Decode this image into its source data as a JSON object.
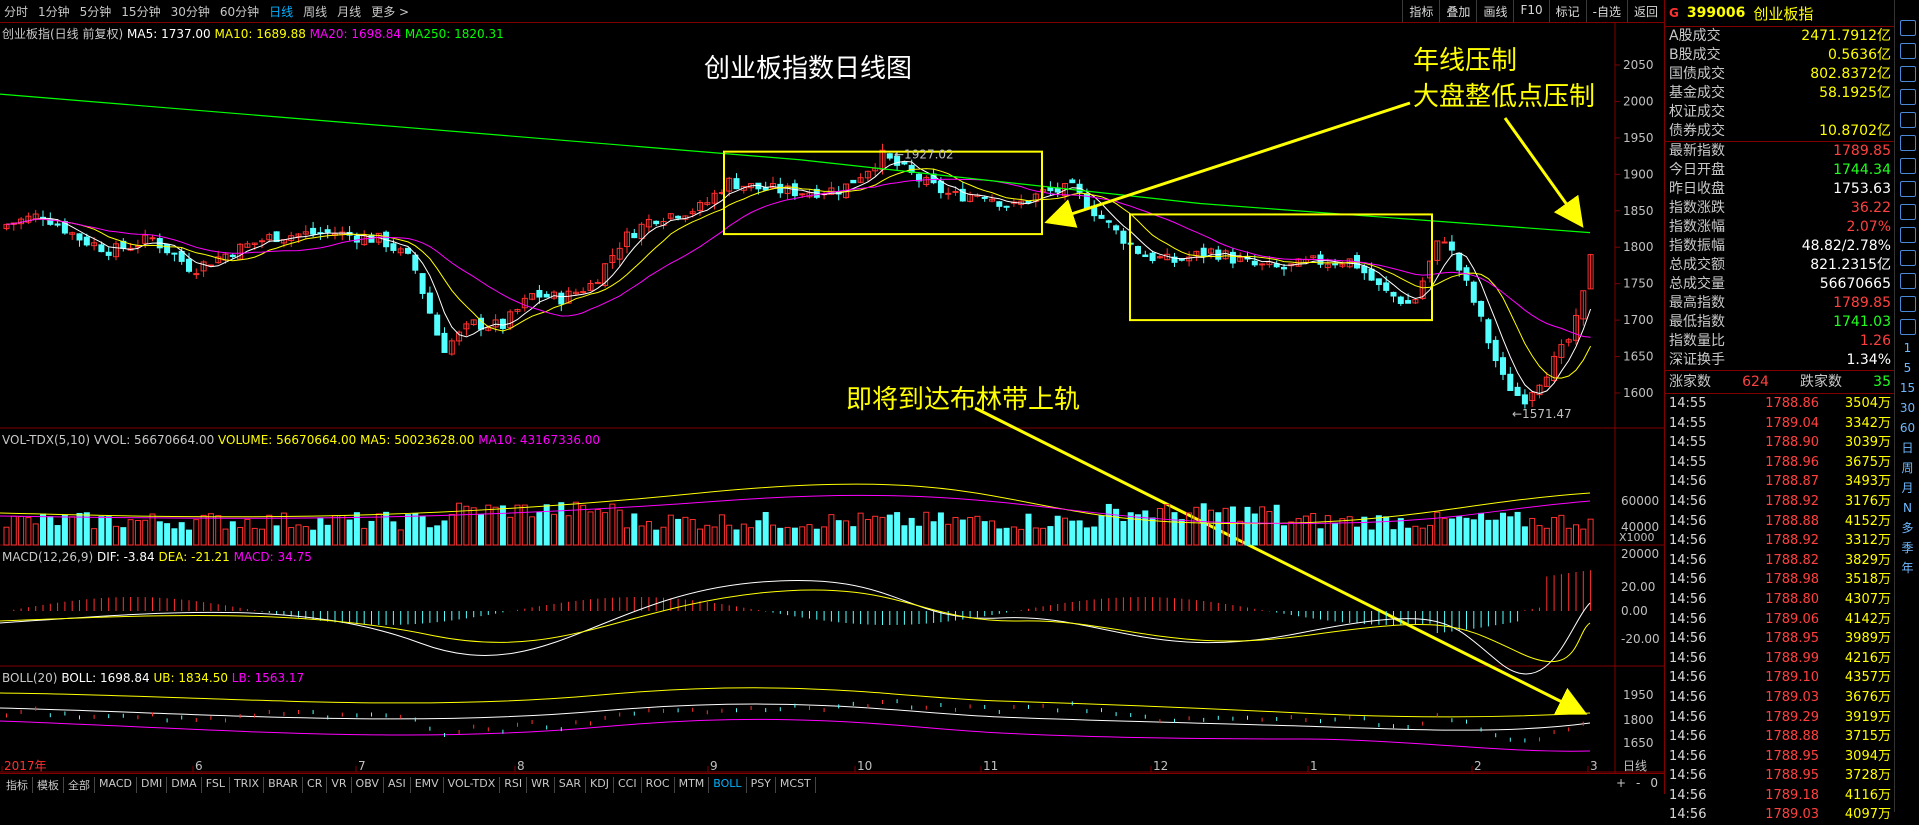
{
  "toolbar": {
    "periods": [
      "分时",
      "1分钟",
      "5分钟",
      "15分钟",
      "30分钟",
      "60分钟",
      "日线",
      "周线",
      "月线",
      "更多 >"
    ],
    "active_period": "日线",
    "buttons": [
      "指标",
      "叠加",
      "画线",
      "F10",
      "标记",
      "-自选",
      "返回"
    ]
  },
  "main_pane": {
    "header": {
      "name": "创业板指(日线 前复权)",
      "ma5": "MA5: 1737.00",
      "ma10": "MA10: 1689.88",
      "ma20": "MA20: 1698.84",
      "ma250": "MA250: 1820.31"
    },
    "title": "创业板指数日线图",
    "high_label": "1927.02",
    "low_label": "1571.47",
    "annotation_1_line1": "年线压制",
    "annotation_1_line2": "大盘整低点压制",
    "annotation_2": "即将到达布林带上轨",
    "y_ticks": [
      "2050",
      "2000",
      "1950",
      "1900",
      "1850",
      "1800",
      "1750",
      "1700",
      "1650",
      "1600"
    ]
  },
  "vol_pane": {
    "name": "VOL-TDX(5,10)",
    "vvol": "VVOL: 56670664.00",
    "volume": "VOLUME: 56670664.00",
    "ma5": "MA5: 50023628.00",
    "ma10": "MA10: 43167336.00",
    "y_ticks": [
      "60000",
      "40000",
      "20000"
    ],
    "unit": "X1000"
  },
  "macd_pane": {
    "name": "MACD(12,26,9)",
    "dif": "DIF: -3.84",
    "dea": "DEA: -21.21",
    "macd": "MACD: 34.75",
    "y_ticks": [
      "20.00",
      "0.00",
      "-20.00"
    ]
  },
  "boll_pane": {
    "name": "BOLL(20)",
    "boll": "BOLL: 1698.84",
    "ub": "UB: 1834.50",
    "lb": "LB: 1563.17",
    "y_ticks": [
      "1950",
      "1800",
      "1650"
    ]
  },
  "x_axis": {
    "labels": [
      "2017年",
      "6",
      "7",
      "8",
      "9",
      "10",
      "11",
      "12",
      "1",
      "2",
      "3"
    ],
    "period_label": "日线"
  },
  "bottom_tabs": [
    "指标",
    "模板",
    "全部",
    "MACD",
    "DMI",
    "DMA",
    "FSL",
    "TRIX",
    "BRAR",
    "CR",
    "VR",
    "OBV",
    "ASI",
    "EMV",
    "VOL-TDX",
    "RSI",
    "WR",
    "SAR",
    "KDJ",
    "CCI",
    "ROC",
    "MTM",
    "BOLL",
    "PSY",
    "MCST"
  ],
  "bottom_active": "BOLL",
  "bottom_right": [
    "+",
    "-",
    "0"
  ],
  "right_panel": {
    "flag": "G",
    "code": "399006",
    "name": "创业板指",
    "turnover": [
      {
        "k": "A股成交",
        "v": "2471.7912亿"
      },
      {
        "k": "B股成交",
        "v": "0.5636亿"
      },
      {
        "k": "国债成交",
        "v": "802.8372亿"
      },
      {
        "k": "基金成交",
        "v": "58.1925亿"
      },
      {
        "k": "权证成交",
        "v": ""
      },
      {
        "k": "债券成交",
        "v": "10.8702亿"
      }
    ],
    "quote": [
      {
        "k": "最新指数",
        "v": "1789.85",
        "c": "rise"
      },
      {
        "k": "今日开盘",
        "v": "1744.34",
        "c": "fall"
      },
      {
        "k": "昨日收盘",
        "v": "1753.63",
        "c": "white"
      },
      {
        "k": "指数涨跌",
        "v": "36.22",
        "c": "rise"
      },
      {
        "k": "指数涨幅",
        "v": "2.07%",
        "c": "rise"
      },
      {
        "k": "指数振幅",
        "v": "48.82/2.78%",
        "c": "white"
      },
      {
        "k": "总成交额",
        "v": "821.2315亿",
        "c": "white"
      },
      {
        "k": "总成交量",
        "v": "56670665",
        "c": "white"
      },
      {
        "k": "最高指数",
        "v": "1789.85",
        "c": "rise"
      },
      {
        "k": "最低指数",
        "v": "1741.03",
        "c": "fall"
      },
      {
        "k": "指数量比",
        "v": "1.26",
        "c": "rise"
      },
      {
        "k": "深证换手",
        "v": "1.34%",
        "c": "white"
      }
    ],
    "breadth": {
      "up_label": "涨家数",
      "up": "624",
      "down_label": "跌家数",
      "down": "35"
    },
    "ticks": [
      [
        "14:55",
        "1788.86",
        "3504万"
      ],
      [
        "14:55",
        "1789.04",
        "3342万"
      ],
      [
        "14:55",
        "1788.90",
        "3039万"
      ],
      [
        "14:55",
        "1788.96",
        "3675万"
      ],
      [
        "14:56",
        "1788.87",
        "3493万"
      ],
      [
        "14:56",
        "1788.92",
        "3176万"
      ],
      [
        "14:56",
        "1788.88",
        "4152万"
      ],
      [
        "14:56",
        "1788.92",
        "3312万"
      ],
      [
        "14:56",
        "1788.82",
        "3829万"
      ],
      [
        "14:56",
        "1788.98",
        "3518万"
      ],
      [
        "14:56",
        "1788.80",
        "4307万"
      ],
      [
        "14:56",
        "1789.06",
        "4142万"
      ],
      [
        "14:56",
        "1788.95",
        "3989万"
      ],
      [
        "14:56",
        "1788.99",
        "4216万"
      ],
      [
        "14:56",
        "1789.10",
        "4357万"
      ],
      [
        "14:56",
        "1789.03",
        "3676万"
      ],
      [
        "14:56",
        "1789.29",
        "3919万"
      ],
      [
        "14:56",
        "1788.88",
        "3715万"
      ],
      [
        "14:56",
        "1788.95",
        "3094万"
      ],
      [
        "14:56",
        "1788.95",
        "3728万"
      ],
      [
        "14:56",
        "1789.18",
        "4116万"
      ],
      [
        "14:56",
        "1789.03",
        "4097万"
      ]
    ]
  },
  "side_icons": [
    "1",
    "5",
    "15",
    "30",
    "60",
    "日",
    "周",
    "月",
    "N",
    "多",
    "季",
    "年"
  ],
  "colors": {
    "up": "#ff3030",
    "down": "#54ffff",
    "ma5": "#ffffff",
    "ma10": "#ffff00",
    "ma20": "#ff00ff",
    "ma250": "#00ff00",
    "annotation": "#ffff00",
    "border": "#800000"
  }
}
